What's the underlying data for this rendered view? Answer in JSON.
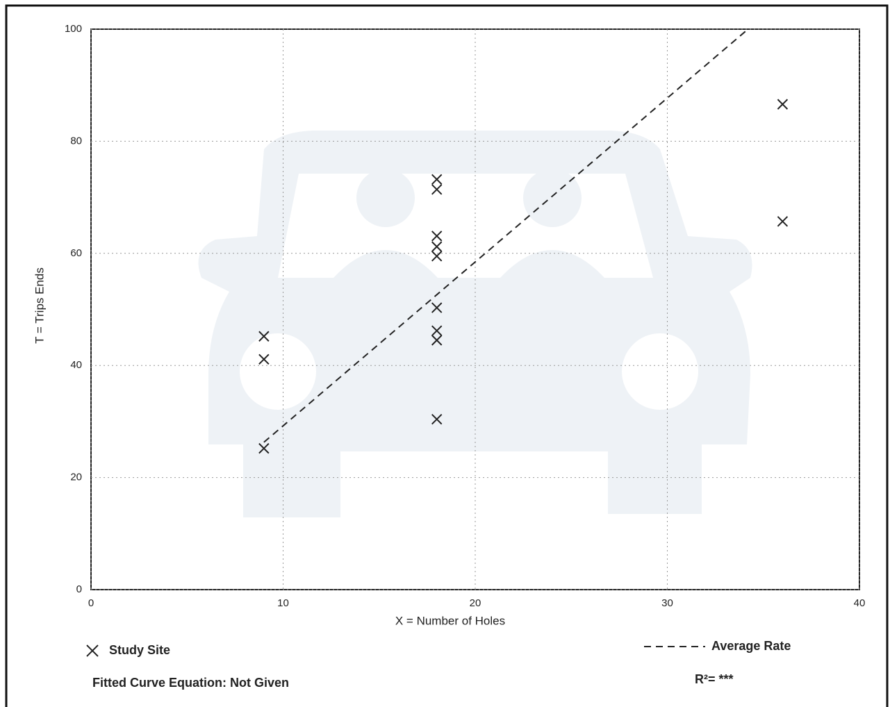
{
  "chart_data": {
    "type": "scatter",
    "x_label": "X = Number of Holes",
    "y_label": "T = Trips Ends",
    "xlim": [
      0,
      40
    ],
    "xticks": [
      0,
      10,
      20,
      30,
      40
    ],
    "ylim": [
      0,
      100
    ],
    "yticks": [
      0,
      20,
      40,
      60,
      80,
      100
    ],
    "grid": true,
    "series": [
      {
        "name": "Study Site",
        "type": "scatter",
        "color": "#222222",
        "x": [
          9,
          9,
          9,
          18,
          18,
          18,
          18,
          18,
          18,
          18,
          18,
          18,
          36,
          36
        ],
        "values": [
          45.2,
          41.1,
          25.2,
          73.2,
          71.4,
          63.1,
          61.2,
          59.5,
          50.3,
          46.2,
          44.5,
          30.4,
          86.6,
          65.7
        ]
      },
      {
        "name": "Average Rate",
        "type": "line",
        "color": "#222222",
        "x": [
          9,
          34.2
        ],
        "values": [
          26.3,
          100
        ]
      }
    ],
    "fitted_curve_equation": "Fitted Curve Equation: Not Given",
    "r_squared": "R²= ***"
  }
}
